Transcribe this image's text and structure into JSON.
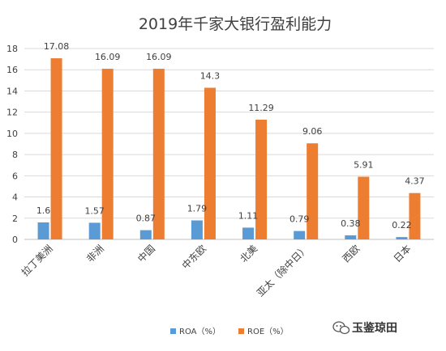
{
  "chart_data": {
    "type": "bar",
    "title": "2019年千家大银行盈利能力",
    "categories": [
      "拉丁美洲",
      "非洲",
      "中国",
      "中东欧",
      "北美",
      "亚太（除中日）",
      "西欧",
      "日本"
    ],
    "series": [
      {
        "name": "ROA（%）",
        "color": "#5b9bd5",
        "values": [
          1.6,
          1.57,
          0.87,
          1.79,
          1.11,
          0.79,
          0.38,
          0.22
        ]
      },
      {
        "name": "ROE（%）",
        "color": "#ed7d31",
        "values": [
          17.08,
          16.09,
          16.09,
          14.3,
          11.29,
          9.06,
          5.91,
          4.37
        ]
      }
    ],
    "yticks": [
      0,
      2,
      4,
      6,
      8,
      10,
      12,
      14,
      16,
      18
    ],
    "ylim": [
      0,
      18
    ],
    "xlabel": "",
    "ylabel": "",
    "grid": true,
    "legend_position": "bottom"
  },
  "watermark": {
    "text": "玉鉴琼田",
    "icon": "wechat-icon"
  }
}
